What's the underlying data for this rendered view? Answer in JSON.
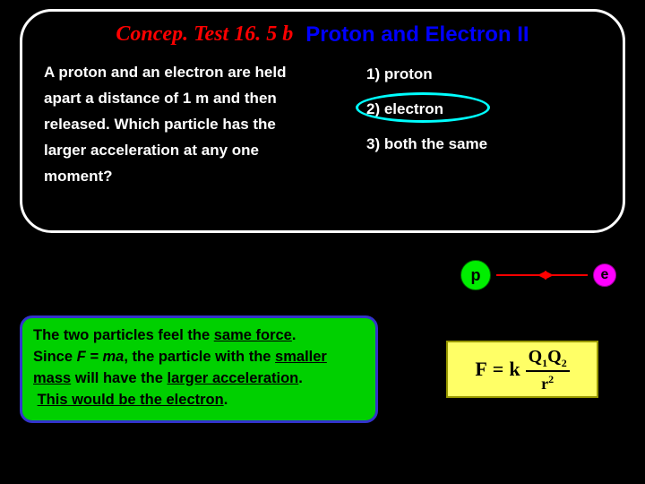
{
  "title": {
    "part1": "Concep. Test 16. 5 b",
    "part2": "Proton and Electron II",
    "part1_color": "#ff0000",
    "part2_color": "#0000ff"
  },
  "question": {
    "line1": "A proton and an electron are held",
    "line2": "apart a distance of 1 m and then",
    "line3": "released.   Which particle has the",
    "line4": "larger acceleration at any one",
    "line5": "moment?"
  },
  "options": {
    "opt1": "1)  proton",
    "opt2": "2)  electron",
    "opt3": "3)  both the same",
    "correct_index": 2,
    "ring_color": "#00ffff"
  },
  "particles": {
    "p_label": "p",
    "e_label": "e",
    "p_color": "#00ee00",
    "e_color": "#ff00ff",
    "arrow_color": "#ff0000"
  },
  "answer": {
    "text_prefix": "The two particles feel the ",
    "same_force": "same force",
    "period1": ".",
    "line2_pre": "  Since ",
    "fma": "F = ma",
    "line2_post": ", the particle with the ",
    "smaller_mass": "smaller mass",
    "line3_mid": " will have the ",
    "larger_accel": "larger acceleration",
    "period2": ".",
    "conclusion": "This would be the electron",
    "period3": ".",
    "bg_color": "#00d000",
    "border_color": "#3333cc"
  },
  "formula": {
    "F": "F",
    "eq": " = ",
    "k": "k",
    "q1": "Q",
    "s1": "1",
    "q2": "Q",
    "s2": "2",
    "r": "r",
    "sq": "2",
    "bg_color": "#ffff66"
  },
  "panel": {
    "border_color": "#ffffff",
    "bg_color": "#000000"
  },
  "page_bg": "#000000"
}
